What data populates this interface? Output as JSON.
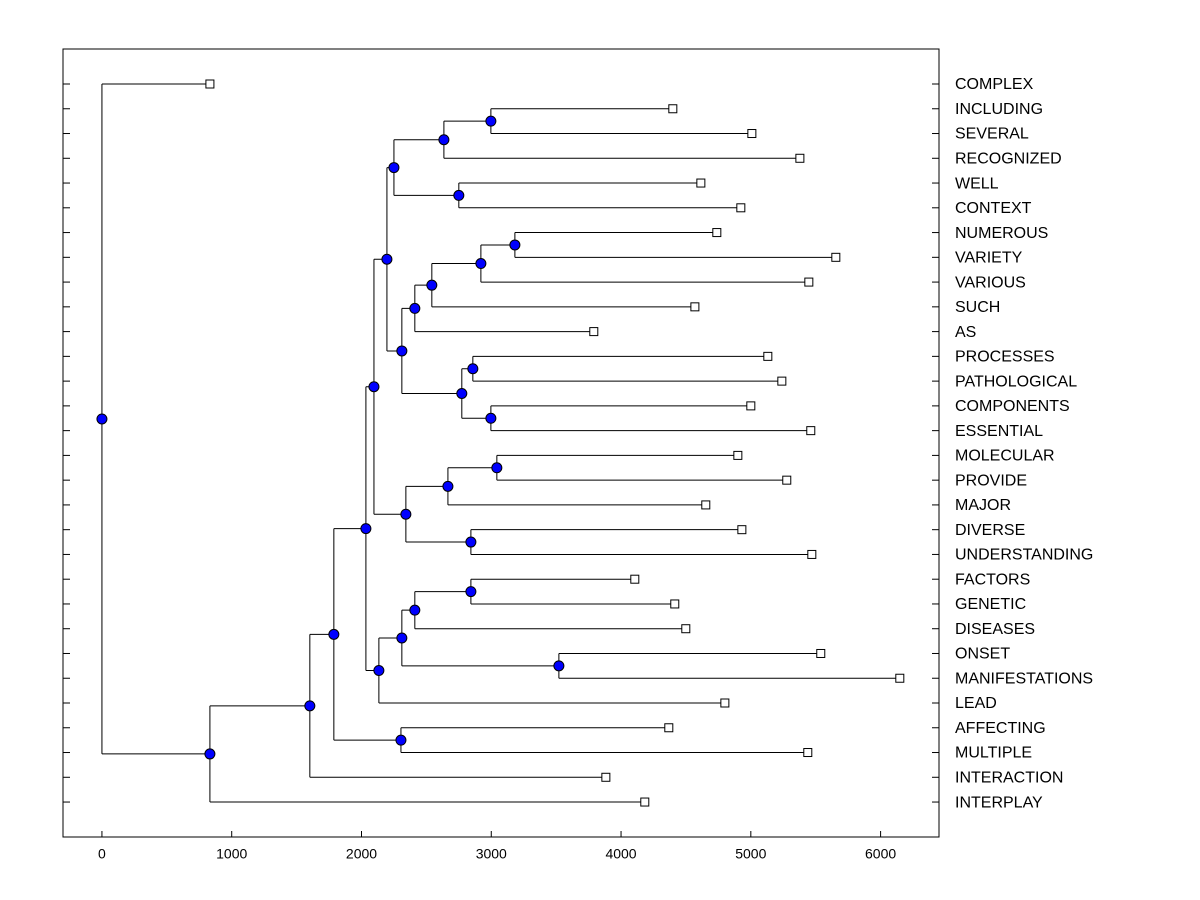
{
  "chart_data": {
    "type": "dendrogram",
    "xlim": [
      -300,
      6450
    ],
    "xticks": [
      0,
      1000,
      2000,
      3000,
      4000,
      5000,
      6000
    ],
    "node_color": "#0000ff",
    "tree": {
      "x": 0,
      "children": [
        {
          "label": "COMPLEX",
          "x": 832
        },
        {
          "x": 832,
          "children": [
            {
              "x": 1602,
              "children": [
                {
                  "x": 1787,
                  "children": [
                    {
                      "x": 2034,
                      "children": [
                        {
                          "x": 2096,
                          "children": [
                            {
                              "x": 2196,
                              "children": [
                                {
                                  "x": 2250,
                                  "children": [
                                    {
                                      "x": 2635,
                                      "children": [
                                        {
                                          "x": 2997,
                                          "children": [
                                            {
                                              "label": "INCLUDING",
                                              "x": 4399
                                            },
                                            {
                                              "label": "SEVERAL",
                                              "x": 5008
                                            }
                                          ]
                                        },
                                        {
                                          "label": "RECOGNIZED",
                                          "x": 5378
                                        }
                                      ]
                                    },
                                    {
                                      "x": 2750,
                                      "children": [
                                        {
                                          "label": "WELL",
                                          "x": 4615
                                        },
                                        {
                                          "label": "CONTEXT",
                                          "x": 4923
                                        }
                                      ]
                                    }
                                  ]
                                },
                                {
                                  "x": 2311,
                                  "children": [
                                    {
                                      "x": 2411,
                                      "children": [
                                        {
                                          "x": 2542,
                                          "children": [
                                            {
                                              "x": 2920,
                                              "children": [
                                                {
                                                  "x": 3182,
                                                  "children": [
                                                    {
                                                      "label": "NUMEROUS",
                                                      "x": 4738
                                                    },
                                                    {
                                                      "label": "VARIETY",
                                                      "x": 5655
                                                    }
                                                  ]
                                                },
                                                {
                                                  "label": "VARIOUS",
                                                  "x": 5447
                                                }
                                              ]
                                            },
                                            {
                                              "label": "SUCH",
                                              "x": 4569
                                            }
                                          ]
                                        },
                                        {
                                          "label": "AS",
                                          "x": 3790
                                        }
                                      ]
                                    },
                                    {
                                      "x": 2773,
                                      "children": [
                                        {
                                          "x": 2858,
                                          "children": [
                                            {
                                              "label": "PROCESSES",
                                              "x": 5131
                                            },
                                            {
                                              "label": "PATHOLOGICAL",
                                              "x": 5239
                                            }
                                          ]
                                        },
                                        {
                                          "x": 2997,
                                          "children": [
                                            {
                                              "label": "COMPONENTS",
                                              "x": 5000
                                            },
                                            {
                                              "label": "ESSENTIAL",
                                              "x": 5462
                                            }
                                          ]
                                        }
                                      ]
                                    }
                                  ]
                                }
                              ]
                            },
                            {
                              "x": 2342,
                              "children": [
                                {
                                  "x": 2666,
                                  "children": [
                                    {
                                      "x": 3043,
                                      "children": [
                                        {
                                          "label": "MOLECULAR",
                                          "x": 4900
                                        },
                                        {
                                          "label": "PROVIDE",
                                          "x": 5277
                                        }
                                      ]
                                    },
                                    {
                                      "label": "MAJOR",
                                      "x": 4653
                                    }
                                  ]
                                },
                                {
                                  "x": 2843,
                                  "children": [
                                    {
                                      "label": "DIVERSE",
                                      "x": 4931
                                    },
                                    {
                                      "label": "UNDERSTANDING",
                                      "x": 5470
                                    }
                                  ]
                                }
                              ]
                            }
                          ]
                        },
                        {
                          "x": 2134,
                          "children": [
                            {
                              "x": 2311,
                              "children": [
                                {
                                  "x": 2411,
                                  "children": [
                                    {
                                      "x": 2843,
                                      "children": [
                                        {
                                          "label": "FACTORS",
                                          "x": 4106
                                        },
                                        {
                                          "label": "GENETIC",
                                          "x": 4414
                                        }
                                      ]
                                    },
                                    {
                                      "label": "DISEASES",
                                      "x": 4499
                                    }
                                  ]
                                },
                                {
                                  "x": 3521,
                                  "children": [
                                    {
                                      "label": "ONSET",
                                      "x": 5539
                                    },
                                    {
                                      "label": "MANIFESTATIONS",
                                      "x": 6148
                                    }
                                  ]
                                }
                              ]
                            },
                            {
                              "label": "LEAD",
                              "x": 4800
                            }
                          ]
                        }
                      ]
                    },
                    {
                      "x": 2304,
                      "children": [
                        {
                          "label": "AFFECTING",
                          "x": 4368
                        },
                        {
                          "label": "MULTIPLE",
                          "x": 5439
                        }
                      ]
                    }
                  ]
                },
                {
                  "label": "INTERACTION",
                  "x": 3883
                }
              ]
            },
            {
              "label": "INTERPLAY",
              "x": 4183
            }
          ]
        }
      ]
    }
  }
}
